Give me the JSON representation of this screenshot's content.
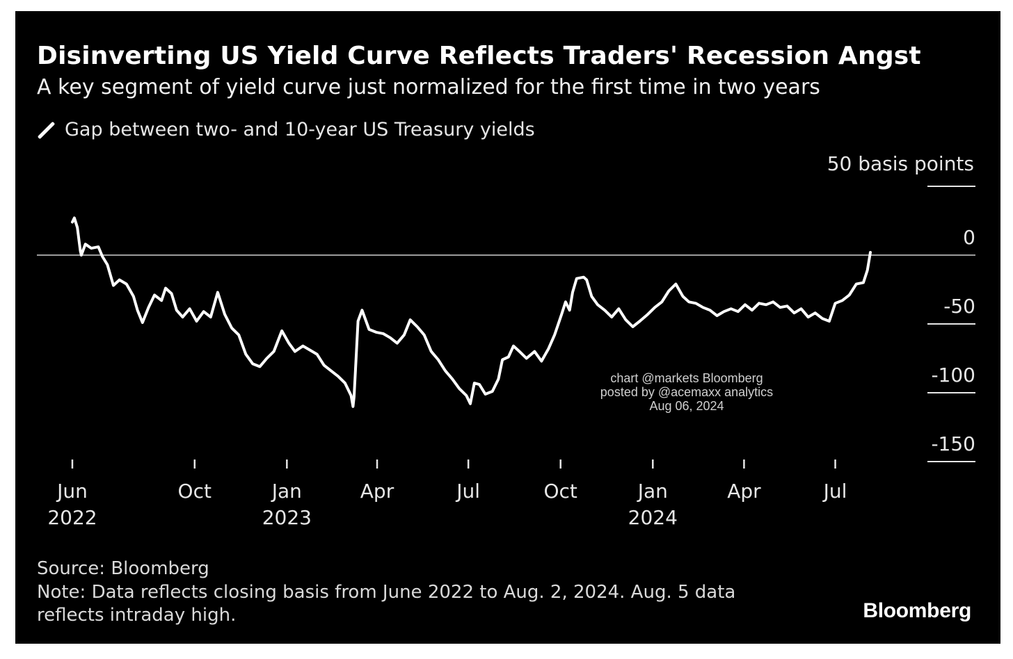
{
  "chart_data": {
    "type": "line",
    "title": "Disinverting US Yield Curve Reflects Traders' Recession Angst",
    "subtitle": "A key segment of yield curve just normalized for the first time in two years",
    "ylabel": "",
    "unit_label": "50 basis points",
    "ylim": [
      -150,
      50
    ],
    "yticks": [
      {
        "value": 0,
        "label": "0"
      },
      {
        "value": -50,
        "label": "-50"
      },
      {
        "value": -100,
        "label": "-100"
      },
      {
        "value": -150,
        "label": "-150"
      }
    ],
    "xlim": [
      "2022-05-23",
      "2024-08-30"
    ],
    "xticks": [
      {
        "date": "2022-06-01",
        "month": "Jun",
        "year": "2022"
      },
      {
        "date": "2022-10-01",
        "month": "Oct",
        "year": ""
      },
      {
        "date": "2023-01-01",
        "month": "Jan",
        "year": "2023"
      },
      {
        "date": "2023-04-01",
        "month": "Apr",
        "year": ""
      },
      {
        "date": "2023-07-01",
        "month": "Jul",
        "year": ""
      },
      {
        "date": "2023-10-01",
        "month": "Oct",
        "year": ""
      },
      {
        "date": "2024-01-01",
        "month": "Jan",
        "year": "2024"
      },
      {
        "date": "2024-04-01",
        "month": "Apr",
        "year": ""
      },
      {
        "date": "2024-07-01",
        "month": "Jul",
        "year": ""
      }
    ],
    "zero_line": true,
    "grid": false,
    "legend_position": "top-left",
    "series": [
      {
        "name": "Gap between two- and 10-year US Treasury yields",
        "color": "#ffffff",
        "points": [
          {
            "x": "2022-06-01",
            "y": 24
          },
          {
            "x": "2022-06-03",
            "y": 27
          },
          {
            "x": "2022-06-06",
            "y": 20
          },
          {
            "x": "2022-06-09",
            "y": 3
          },
          {
            "x": "2022-06-10",
            "y": 0
          },
          {
            "x": "2022-06-14",
            "y": 8
          },
          {
            "x": "2022-06-20",
            "y": 5
          },
          {
            "x": "2022-06-27",
            "y": 6
          },
          {
            "x": "2022-07-01",
            "y": -1
          },
          {
            "x": "2022-07-06",
            "y": -7
          },
          {
            "x": "2022-07-12",
            "y": -22
          },
          {
            "x": "2022-07-18",
            "y": -18
          },
          {
            "x": "2022-07-25",
            "y": -21
          },
          {
            "x": "2022-08-01",
            "y": -30
          },
          {
            "x": "2022-08-05",
            "y": -40
          },
          {
            "x": "2022-08-10",
            "y": -49
          },
          {
            "x": "2022-08-16",
            "y": -38
          },
          {
            "x": "2022-08-22",
            "y": -29
          },
          {
            "x": "2022-08-29",
            "y": -33
          },
          {
            "x": "2022-09-02",
            "y": -24
          },
          {
            "x": "2022-09-08",
            "y": -28
          },
          {
            "x": "2022-09-13",
            "y": -40
          },
          {
            "x": "2022-09-19",
            "y": -45
          },
          {
            "x": "2022-09-26",
            "y": -39
          },
          {
            "x": "2022-10-03",
            "y": -48
          },
          {
            "x": "2022-10-10",
            "y": -41
          },
          {
            "x": "2022-10-17",
            "y": -45
          },
          {
            "x": "2022-10-24",
            "y": -27
          },
          {
            "x": "2022-10-31",
            "y": -43
          },
          {
            "x": "2022-11-07",
            "y": -53
          },
          {
            "x": "2022-11-14",
            "y": -58
          },
          {
            "x": "2022-11-21",
            "y": -72
          },
          {
            "x": "2022-11-28",
            "y": -79
          },
          {
            "x": "2022-12-05",
            "y": -81
          },
          {
            "x": "2022-12-12",
            "y": -75
          },
          {
            "x": "2022-12-19",
            "y": -70
          },
          {
            "x": "2022-12-27",
            "y": -55
          },
          {
            "x": "2023-01-03",
            "y": -64
          },
          {
            "x": "2023-01-09",
            "y": -70
          },
          {
            "x": "2023-01-17",
            "y": -66
          },
          {
            "x": "2023-01-24",
            "y": -69
          },
          {
            "x": "2023-01-31",
            "y": -72
          },
          {
            "x": "2023-02-07",
            "y": -80
          },
          {
            "x": "2023-02-14",
            "y": -84
          },
          {
            "x": "2023-02-21",
            "y": -88
          },
          {
            "x": "2023-02-28",
            "y": -93
          },
          {
            "x": "2023-03-06",
            "y": -102
          },
          {
            "x": "2023-03-08",
            "y": -110
          },
          {
            "x": "2023-03-09",
            "y": -103
          },
          {
            "x": "2023-03-13",
            "y": -48
          },
          {
            "x": "2023-03-17",
            "y": -40
          },
          {
            "x": "2023-03-24",
            "y": -54
          },
          {
            "x": "2023-03-31",
            "y": -56
          },
          {
            "x": "2023-04-07",
            "y": -57
          },
          {
            "x": "2023-04-14",
            "y": -60
          },
          {
            "x": "2023-04-21",
            "y": -64
          },
          {
            "x": "2023-04-28",
            "y": -58
          },
          {
            "x": "2023-05-04",
            "y": -47
          },
          {
            "x": "2023-05-11",
            "y": -52
          },
          {
            "x": "2023-05-18",
            "y": -58
          },
          {
            "x": "2023-05-25",
            "y": -70
          },
          {
            "x": "2023-06-01",
            "y": -76
          },
          {
            "x": "2023-06-08",
            "y": -84
          },
          {
            "x": "2023-06-15",
            "y": -90
          },
          {
            "x": "2023-06-22",
            "y": -97
          },
          {
            "x": "2023-06-29",
            "y": -102
          },
          {
            "x": "2023-07-03",
            "y": -108
          },
          {
            "x": "2023-07-07",
            "y": -93
          },
          {
            "x": "2023-07-12",
            "y": -94
          },
          {
            "x": "2023-07-18",
            "y": -101
          },
          {
            "x": "2023-07-25",
            "y": -99
          },
          {
            "x": "2023-07-31",
            "y": -90
          },
          {
            "x": "2023-08-04",
            "y": -76
          },
          {
            "x": "2023-08-10",
            "y": -74
          },
          {
            "x": "2023-08-15",
            "y": -66
          },
          {
            "x": "2023-08-21",
            "y": -70
          },
          {
            "x": "2023-08-28",
            "y": -75
          },
          {
            "x": "2023-09-05",
            "y": -70
          },
          {
            "x": "2023-09-12",
            "y": -77
          },
          {
            "x": "2023-09-19",
            "y": -68
          },
          {
            "x": "2023-09-25",
            "y": -58
          },
          {
            "x": "2023-10-02",
            "y": -43
          },
          {
            "x": "2023-10-06",
            "y": -34
          },
          {
            "x": "2023-10-10",
            "y": -40
          },
          {
            "x": "2023-10-13",
            "y": -27
          },
          {
            "x": "2023-10-17",
            "y": -17
          },
          {
            "x": "2023-10-24",
            "y": -16
          },
          {
            "x": "2023-10-27",
            "y": -18
          },
          {
            "x": "2023-11-01",
            "y": -30
          },
          {
            "x": "2023-11-07",
            "y": -36
          },
          {
            "x": "2023-11-14",
            "y": -40
          },
          {
            "x": "2023-11-21",
            "y": -45
          },
          {
            "x": "2023-11-28",
            "y": -39
          },
          {
            "x": "2023-12-05",
            "y": -47
          },
          {
            "x": "2023-12-12",
            "y": -52
          },
          {
            "x": "2023-12-19",
            "y": -48
          },
          {
            "x": "2023-12-27",
            "y": -43
          },
          {
            "x": "2024-01-03",
            "y": -38
          },
          {
            "x": "2024-01-10",
            "y": -34
          },
          {
            "x": "2024-01-17",
            "y": -26
          },
          {
            "x": "2024-01-24",
            "y": -21
          },
          {
            "x": "2024-01-31",
            "y": -30
          },
          {
            "x": "2024-02-06",
            "y": -34
          },
          {
            "x": "2024-02-13",
            "y": -35
          },
          {
            "x": "2024-02-20",
            "y": -38
          },
          {
            "x": "2024-02-27",
            "y": -40
          },
          {
            "x": "2024-03-05",
            "y": -44
          },
          {
            "x": "2024-03-12",
            "y": -41
          },
          {
            "x": "2024-03-19",
            "y": -39
          },
          {
            "x": "2024-03-26",
            "y": -41
          },
          {
            "x": "2024-04-02",
            "y": -36
          },
          {
            "x": "2024-04-09",
            "y": -40
          },
          {
            "x": "2024-04-16",
            "y": -35
          },
          {
            "x": "2024-04-23",
            "y": -36
          },
          {
            "x": "2024-04-30",
            "y": -34
          },
          {
            "x": "2024-05-07",
            "y": -38
          },
          {
            "x": "2024-05-14",
            "y": -37
          },
          {
            "x": "2024-05-21",
            "y": -42
          },
          {
            "x": "2024-05-28",
            "y": -39
          },
          {
            "x": "2024-06-04",
            "y": -45
          },
          {
            "x": "2024-06-11",
            "y": -42
          },
          {
            "x": "2024-06-18",
            "y": -46
          },
          {
            "x": "2024-06-25",
            "y": -48
          },
          {
            "x": "2024-07-01",
            "y": -35
          },
          {
            "x": "2024-07-08",
            "y": -33
          },
          {
            "x": "2024-07-15",
            "y": -29
          },
          {
            "x": "2024-07-22",
            "y": -21
          },
          {
            "x": "2024-07-29",
            "y": -20
          },
          {
            "x": "2024-08-02",
            "y": -11
          },
          {
            "x": "2024-08-05",
            "y": 2
          }
        ]
      }
    ]
  },
  "watermark": {
    "line1": "chart @markets Bloomberg",
    "line2": "posted by @acemaxx analytics",
    "line3": "Aug 06, 2024"
  },
  "footer": {
    "source": "Source: Bloomberg",
    "note": "Note: Data reflects closing basis from June 2022 to Aug. 2, 2024. Aug. 5 data reflects intraday high.",
    "brand": "Bloomberg"
  },
  "colors": {
    "background": "#000000",
    "line": "#ffffff",
    "text": "#e6e6e6"
  }
}
